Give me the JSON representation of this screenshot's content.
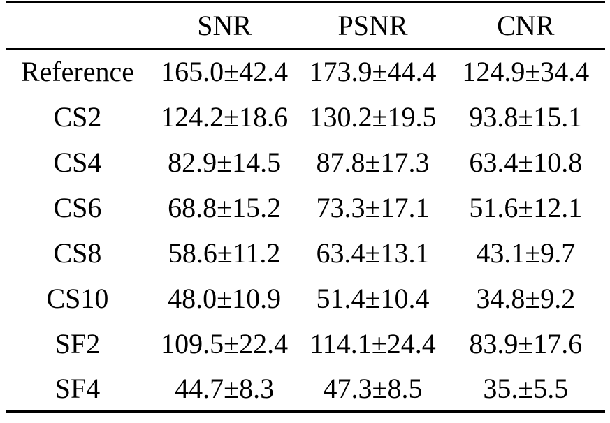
{
  "page": {
    "background_color": "#ffffff",
    "text_color": "#000000",
    "rule_color": "#000000"
  },
  "chart_data": {
    "type": "table",
    "title": "",
    "columns": [
      "",
      "SNR",
      "PSNR",
      "CNR"
    ],
    "rows": [
      {
        "label": "Reference",
        "values": [
          "165.0±42.4",
          "173.9±44.4",
          "124.9±34.4"
        ]
      },
      {
        "label": "CS2",
        "values": [
          "124.2±18.6",
          "130.2±19.5",
          "93.8±15.1"
        ]
      },
      {
        "label": "CS4",
        "values": [
          "82.9±14.5",
          "87.8±17.3",
          "63.4±10.8"
        ]
      },
      {
        "label": "CS6",
        "values": [
          "68.8±15.2",
          "73.3±17.1",
          "51.6±12.1"
        ]
      },
      {
        "label": "CS8",
        "values": [
          "58.6±11.2",
          "63.4±13.1",
          "43.1±9.7"
        ]
      },
      {
        "label": "CS10",
        "values": [
          "48.0±10.9",
          "51.4±10.4",
          "34.8±9.2"
        ]
      },
      {
        "label": "SF2",
        "values": [
          "109.5±22.4",
          "114.1±24.4",
          "83.9±17.6"
        ]
      },
      {
        "label": "SF4",
        "values": [
          "44.7±8.3",
          "47.3±8.5",
          "35.±5.5"
        ]
      }
    ]
  }
}
